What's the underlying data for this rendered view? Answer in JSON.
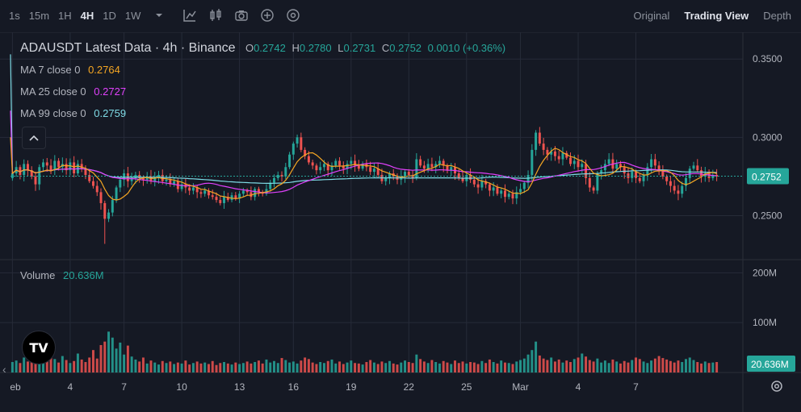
{
  "toolbar": {
    "timeframes": [
      "1s",
      "15m",
      "1H",
      "4H",
      "1D",
      "1W"
    ],
    "active_timeframe": "4H",
    "icons": [
      "chevron-down-icon",
      "indicators-icon",
      "candle-type-icon",
      "camera-icon",
      "add-icon",
      "settings-icon"
    ]
  },
  "views": {
    "items": [
      "Original",
      "Trading View",
      "Depth"
    ],
    "active": "Trading View"
  },
  "legend": {
    "title": "ADAUSDT Latest Data · 4h · Binance",
    "ohlc": {
      "o": "0.2742",
      "h": "0.2780",
      "l": "0.2731",
      "c": "0.2752",
      "change": "0.0010 (+0.36%)"
    },
    "ma": [
      {
        "label": "MA 7 close 0",
        "value": "0.2764",
        "color": "#f5a623"
      },
      {
        "label": "MA 25 close 0",
        "value": "0.2727",
        "color": "#e040fb"
      },
      {
        "label": "MA 99 close 0",
        "value": "0.2759",
        "color": "#7fdbe6"
      }
    ],
    "volume_label": "Volume",
    "volume_value": "20.636M"
  },
  "colors": {
    "up": "#26a69a",
    "down": "#ef5350",
    "background": "#151924",
    "grid": "#262b38"
  },
  "chart_data": {
    "type": "candlestick",
    "symbol": "ADAUSDT",
    "interval": "4h",
    "price_axis": {
      "ticks": [
        "0.3500",
        "0.3000",
        "0.2500"
      ],
      "ylim": [
        0.224,
        0.364
      ]
    },
    "volume_axis": {
      "ticks": [
        "200M",
        "100M"
      ],
      "ylim": [
        0,
        220
      ]
    },
    "x_ticks": [
      "eb",
      "4",
      "7",
      "10",
      "13",
      "16",
      "19",
      "22",
      "25",
      "Mar",
      "4",
      "7"
    ],
    "last_price": "0.2752",
    "last_volume": "20.636M",
    "closes": [
      0.277,
      0.281,
      0.276,
      0.283,
      0.279,
      0.275,
      0.27,
      0.281,
      0.284,
      0.282,
      0.279,
      0.285,
      0.281,
      0.283,
      0.279,
      0.284,
      0.277,
      0.283,
      0.28,
      0.276,
      0.272,
      0.269,
      0.265,
      0.258,
      0.248,
      0.252,
      0.26,
      0.268,
      0.273,
      0.277,
      0.272,
      0.274,
      0.276,
      0.274,
      0.273,
      0.275,
      0.272,
      0.274,
      0.276,
      0.272,
      0.273,
      0.27,
      0.272,
      0.267,
      0.27,
      0.268,
      0.266,
      0.268,
      0.265,
      0.264,
      0.266,
      0.263,
      0.262,
      0.26,
      0.258,
      0.262,
      0.26,
      0.263,
      0.261,
      0.264,
      0.266,
      0.265,
      0.262,
      0.267,
      0.265,
      0.264,
      0.267,
      0.271,
      0.274,
      0.276,
      0.275,
      0.281,
      0.289,
      0.296,
      0.3,
      0.292,
      0.288,
      0.284,
      0.282,
      0.279,
      0.281,
      0.283,
      0.279,
      0.282,
      0.285,
      0.282,
      0.28,
      0.283,
      0.285,
      0.282,
      0.28,
      0.283,
      0.281,
      0.278,
      0.28,
      0.276,
      0.272,
      0.274,
      0.277,
      0.275,
      0.273,
      0.275,
      0.278,
      0.276,
      0.274,
      0.286,
      0.282,
      0.28,
      0.283,
      0.281,
      0.283,
      0.285,
      0.282,
      0.279,
      0.281,
      0.277,
      0.274,
      0.272,
      0.276,
      0.273,
      0.27,
      0.268,
      0.272,
      0.27,
      0.266,
      0.268,
      0.264,
      0.266,
      0.262,
      0.264,
      0.261,
      0.265,
      0.267,
      0.271,
      0.276,
      0.292,
      0.303,
      0.296,
      0.292,
      0.289,
      0.291,
      0.288,
      0.286,
      0.29,
      0.287,
      0.283,
      0.285,
      0.281,
      0.283,
      0.274,
      0.268,
      0.266,
      0.277,
      0.279,
      0.283,
      0.286,
      0.28,
      0.283,
      0.281,
      0.277,
      0.274,
      0.278,
      0.274,
      0.272,
      0.276,
      0.281,
      0.286,
      0.282,
      0.279,
      0.275,
      0.272,
      0.269,
      0.266,
      0.264,
      0.269,
      0.274,
      0.28,
      0.282,
      0.279,
      0.275,
      0.277,
      0.274,
      0.276,
      0.275
    ],
    "volumes": [
      21,
      24,
      19,
      30,
      22,
      25,
      35,
      28,
      18,
      22,
      40,
      27,
      20,
      33,
      25,
      19,
      23,
      38,
      26,
      21,
      30,
      45,
      28,
      55,
      62,
      82,
      70,
      48,
      60,
      36,
      54,
      32,
      26,
      22,
      30,
      18,
      24,
      20,
      16,
      23,
      19,
      22,
      17,
      20,
      18,
      24,
      16,
      19,
      22,
      18,
      20,
      17,
      23,
      15,
      19,
      21,
      18,
      16,
      20,
      17,
      19,
      22,
      18,
      21,
      24,
      18,
      26,
      20,
      23,
      19,
      29,
      25,
      20,
      22,
      18,
      24,
      30,
      27,
      20,
      17,
      21,
      19,
      23,
      26,
      18,
      22,
      17,
      20,
      24,
      19,
      18,
      16,
      21,
      25,
      20,
      17,
      22,
      19,
      23,
      18,
      16,
      20,
      24,
      21,
      19,
      36,
      27,
      22,
      19,
      25,
      21,
      18,
      23,
      20,
      17,
      24,
      19,
      22,
      18,
      21,
      20,
      17,
      23,
      19,
      26,
      21,
      18,
      24,
      20,
      19,
      17,
      22,
      25,
      28,
      36,
      45,
      62,
      34,
      28,
      25,
      30,
      22,
      26,
      20,
      24,
      21,
      27,
      30,
      38,
      32,
      25,
      22,
      28,
      20,
      24,
      19,
      26,
      22,
      18,
      23,
      20,
      25,
      30,
      27,
      22,
      19,
      24,
      28,
      33,
      29,
      26,
      23,
      20,
      24,
      21,
      27,
      30,
      25,
      21,
      18,
      22,
      19,
      20,
      21
    ]
  }
}
